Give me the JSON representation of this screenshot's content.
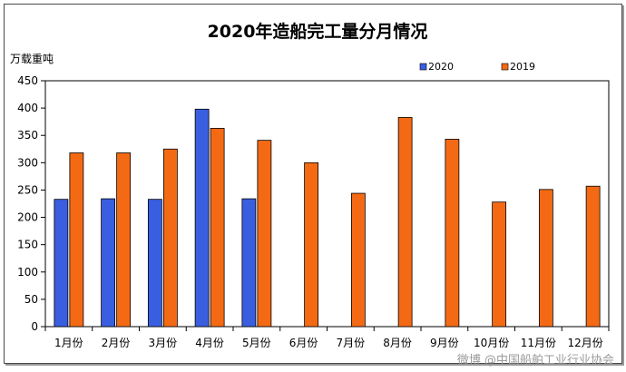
{
  "chart_data": {
    "type": "bar",
    "title": "2020年造船完工量分月情况",
    "ylabel": "万载重吨",
    "xlabel": "",
    "ylim": [
      0,
      450
    ],
    "yticks": [
      0,
      50,
      100,
      150,
      200,
      250,
      300,
      350,
      400,
      450
    ],
    "categories": [
      "1月份",
      "2月份",
      "3月份",
      "4月份",
      "5月份",
      "6月份",
      "7月份",
      "8月份",
      "9月份",
      "10月份",
      "11月份",
      "12月份"
    ],
    "series": [
      {
        "name": "2020",
        "color": "#3a5ee0",
        "values": [
          233,
          234,
          233,
          398,
          234,
          null,
          null,
          null,
          null,
          null,
          null,
          null
        ]
      },
      {
        "name": "2019",
        "color": "#f46a14",
        "values": [
          318,
          318,
          325,
          363,
          341,
          300,
          244,
          383,
          343,
          228,
          251,
          257
        ]
      }
    ],
    "legend_position": "top-right",
    "grid": false
  },
  "watermark": "微博 @中国船舶工业行业协会"
}
